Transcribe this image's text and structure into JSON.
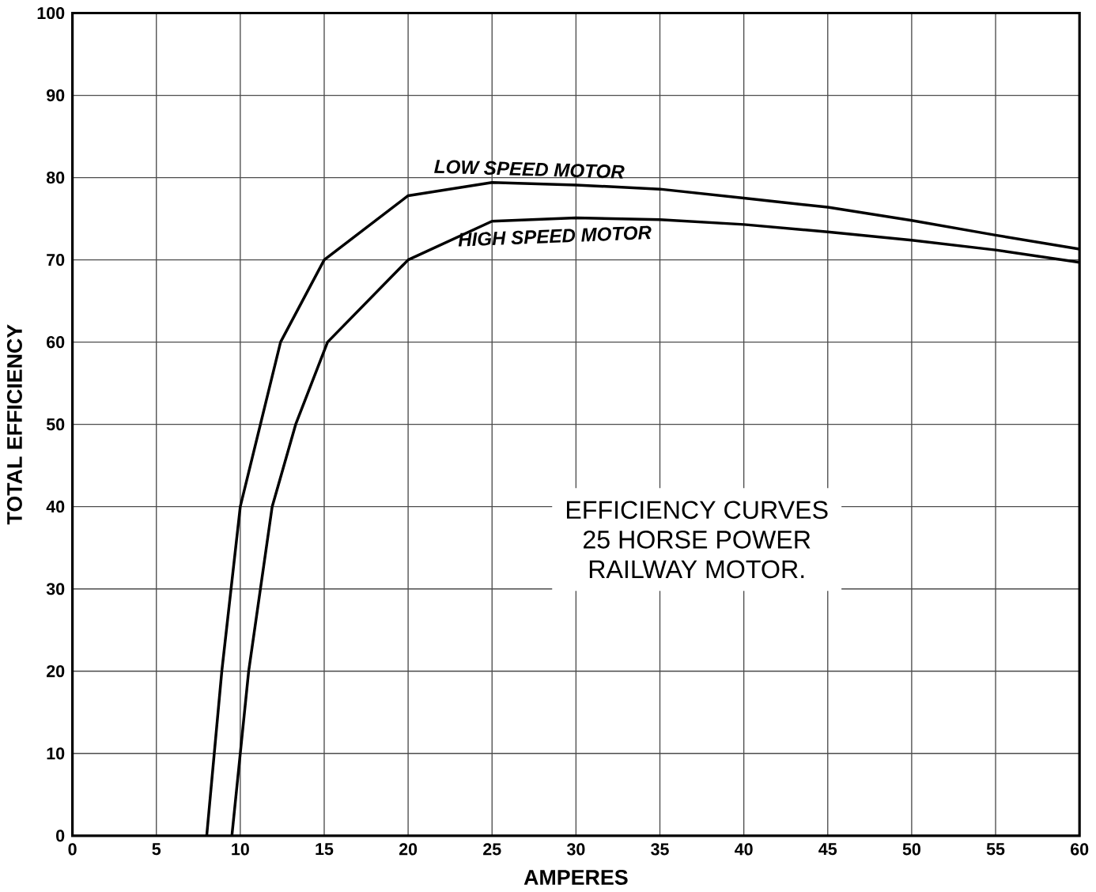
{
  "chart_data": {
    "type": "line",
    "xlabel": "AMPERES",
    "ylabel": "TOTAL EFFICIENCY",
    "annotations": [
      "EFFICIENCY CURVES",
      "25 HORSE POWER",
      "RAILWAY MOTOR."
    ],
    "series": [
      {
        "name": "LOW SPEED MOTOR",
        "color": "#000000",
        "x": [
          8.0,
          8.9,
          10.0,
          12.4,
          15,
          20,
          25,
          30,
          35,
          40,
          45,
          50,
          55,
          60
        ],
        "values": [
          0,
          20,
          40,
          60,
          70,
          77.8,
          79.4,
          79.1,
          78.6,
          77.5,
          76.4,
          74.8,
          73,
          71.3
        ]
      },
      {
        "name": "HIGH SPEED MOTOR",
        "color": "#000000",
        "x": [
          9.5,
          10.5,
          11.9,
          13.3,
          15.2,
          20,
          25,
          30,
          35,
          40,
          45,
          50,
          55,
          60
        ],
        "values": [
          0,
          20,
          40,
          50,
          60,
          70,
          74.7,
          75.1,
          74.9,
          74.3,
          73.4,
          72.4,
          71.2,
          69.7
        ]
      }
    ],
    "xlim": [
      0,
      60
    ],
    "ylim": [
      0,
      100
    ],
    "xticks": [
      0,
      5,
      10,
      15,
      20,
      25,
      30,
      35,
      40,
      45,
      50,
      55,
      60
    ],
    "yticks": [
      0,
      10,
      20,
      30,
      40,
      50,
      60,
      70,
      80,
      90,
      100
    ],
    "grid": true,
    "legend": false,
    "marker": "none",
    "line_style": "solid"
  }
}
